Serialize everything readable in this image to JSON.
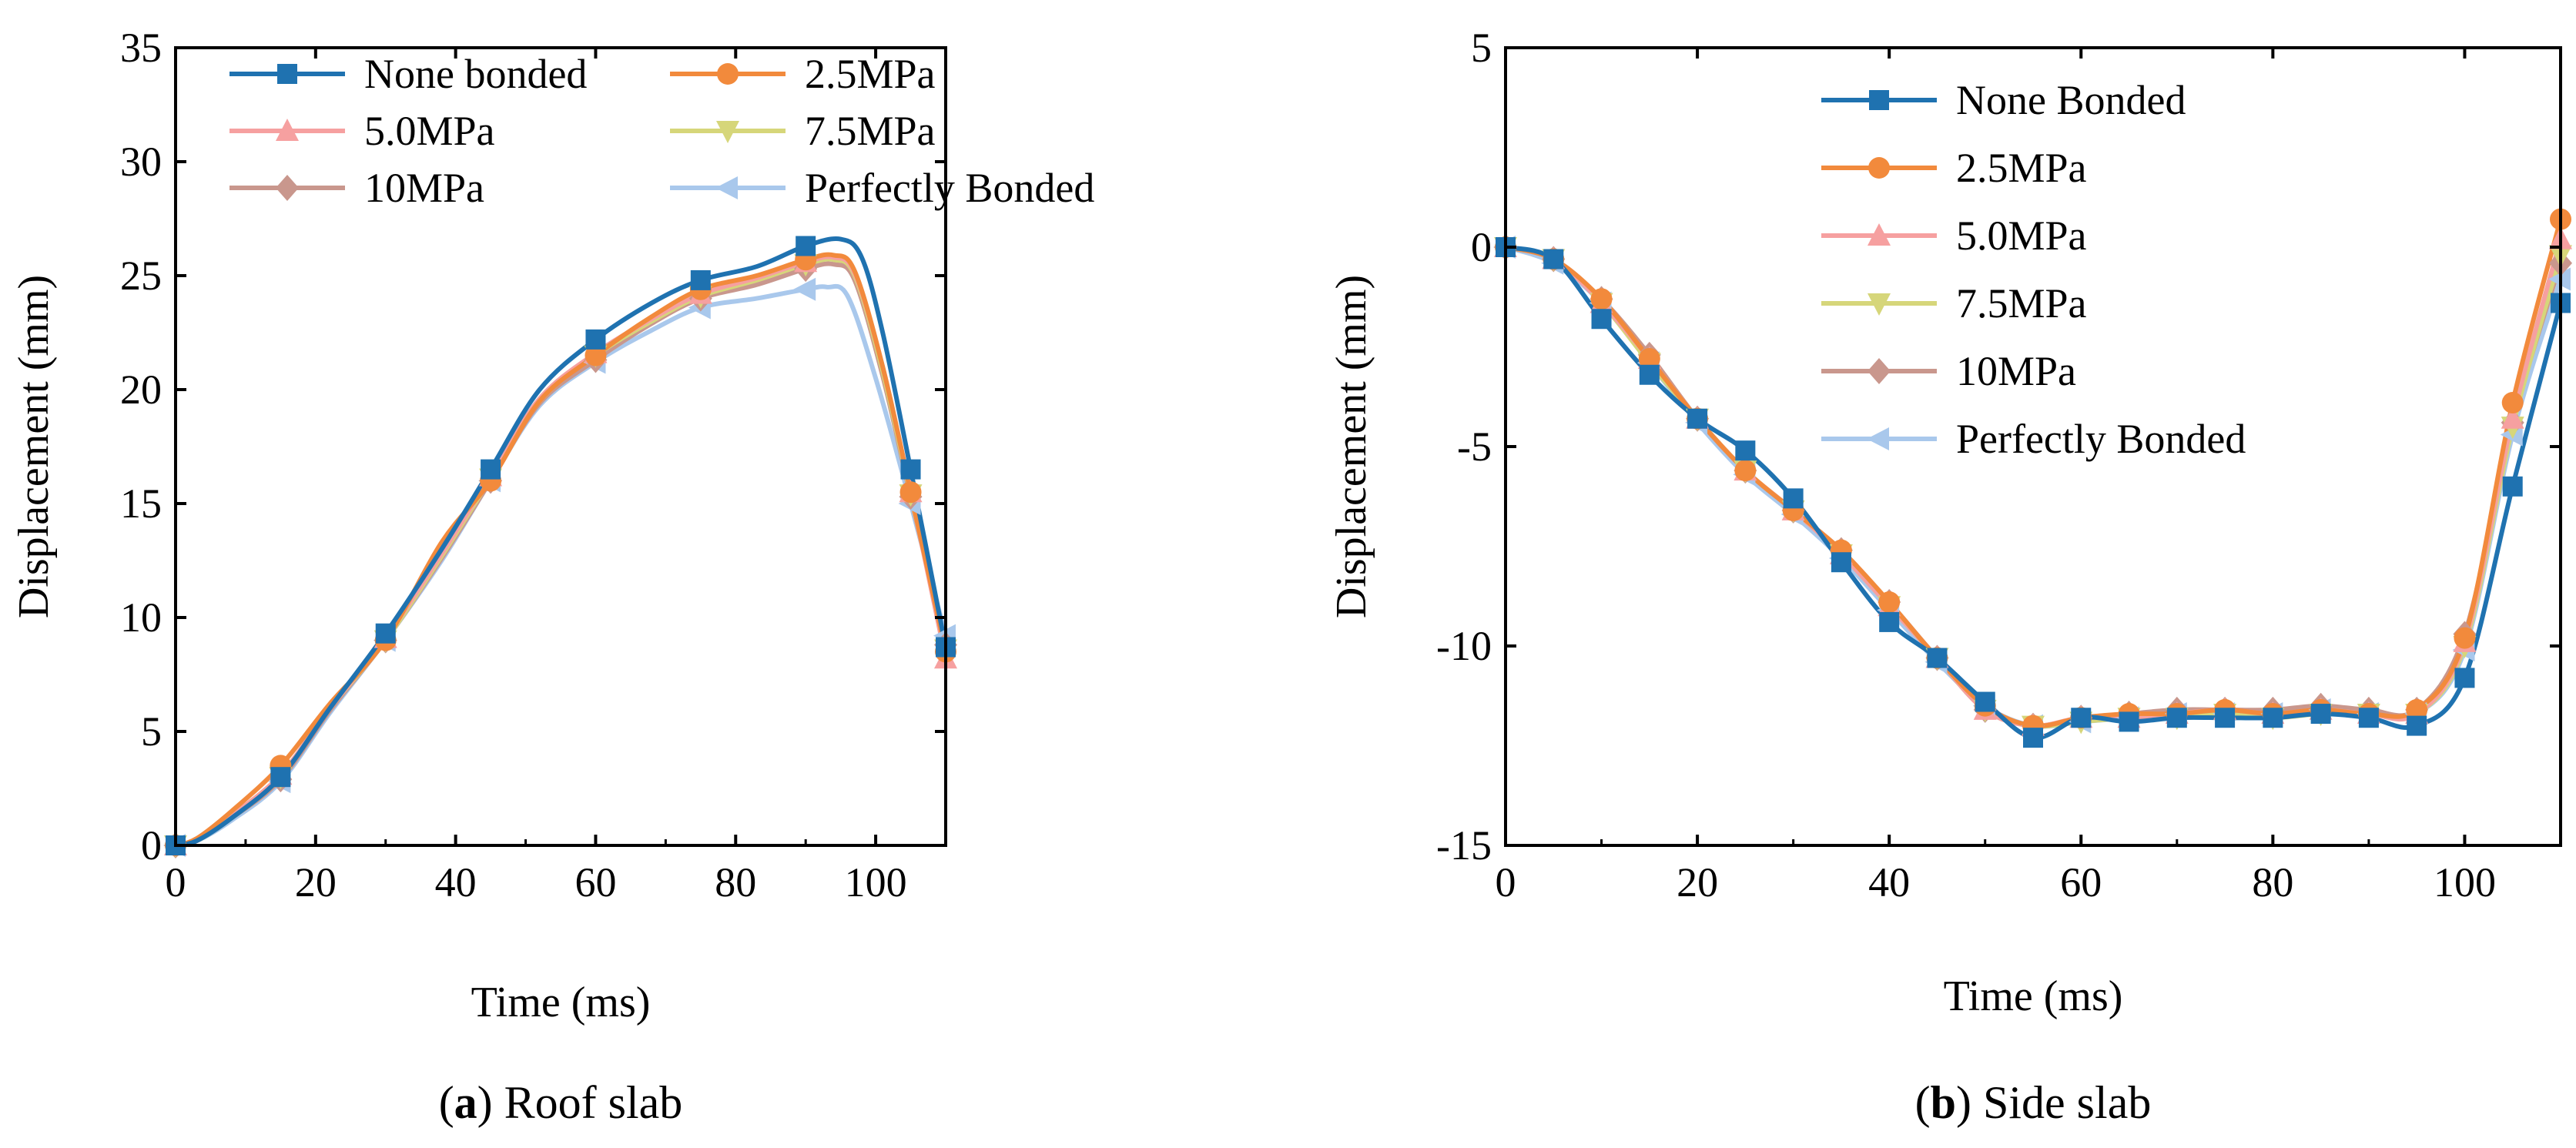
{
  "colors": {
    "None bonded": "#1f72b0",
    "2.5MPa": "#f28a3c",
    "5.0MPa": "#f6a0a0",
    "7.5MPa": "#d6d67a",
    "10MPa": "#c9978d",
    "Perfectly Bonded": "#a9c8ec"
  },
  "chart_data": [
    {
      "type": "line",
      "caption": {
        "label": "a",
        "open": "(",
        "close": ")",
        "text": " Roof slab"
      },
      "xlabel": "Time (ms)",
      "ylabel": "Displacement (mm)",
      "xlim": [
        0,
        110
      ],
      "ylim": [
        0,
        35
      ],
      "xticks": [
        0,
        20,
        40,
        60,
        80,
        100
      ],
      "yticks": [
        0,
        5,
        10,
        15,
        20,
        25,
        30,
        35
      ],
      "legend_position": "top",
      "series": [
        {
          "name": "None bonded",
          "marker": "square",
          "x": [
            0,
            3,
            8,
            15,
            22,
            30,
            38,
            45,
            52,
            60,
            68,
            75,
            83,
            90,
            95,
            98,
            101,
            105,
            110
          ],
          "y": [
            0,
            0.2,
            1.2,
            3.0,
            6.0,
            9.3,
            13.0,
            16.5,
            20.0,
            22.2,
            23.8,
            24.8,
            25.4,
            26.3,
            26.6,
            25.8,
            22.5,
            16.5,
            8.7
          ]
        },
        {
          "name": "2.5MPa",
          "marker": "circle",
          "x": [
            0,
            3,
            8,
            15,
            22,
            30,
            38,
            45,
            52,
            60,
            68,
            75,
            83,
            90,
            94,
            97,
            101,
            105,
            110
          ],
          "y": [
            0,
            0.3,
            1.5,
            3.5,
            6.2,
            9.0,
            13.3,
            16.0,
            19.5,
            21.5,
            23.2,
            24.4,
            25.0,
            25.7,
            25.9,
            25.2,
            21.0,
            15.5,
            8.5
          ]
        },
        {
          "name": "5.0MPa",
          "marker": "triangle-up",
          "x": [
            0,
            3,
            8,
            15,
            22,
            30,
            38,
            45,
            52,
            60,
            68,
            75,
            83,
            90,
            94,
            97,
            101,
            105,
            110
          ],
          "y": [
            0,
            0.2,
            1.3,
            3.1,
            6.0,
            9.1,
            12.8,
            16.2,
            19.6,
            21.6,
            23.1,
            24.2,
            24.9,
            25.6,
            25.8,
            25.1,
            21.0,
            15.5,
            8.2
          ]
        },
        {
          "name": "7.5MPa",
          "marker": "triangle-down",
          "x": [
            0,
            3,
            8,
            15,
            22,
            30,
            38,
            45,
            52,
            60,
            68,
            75,
            83,
            90,
            94,
            97,
            101,
            105,
            110
          ],
          "y": [
            0,
            0.2,
            1.2,
            3.0,
            6.0,
            9.0,
            12.7,
            16.1,
            19.5,
            21.5,
            23.0,
            24.1,
            24.8,
            25.5,
            25.7,
            25.0,
            20.8,
            15.4,
            8.6
          ]
        },
        {
          "name": "10MPa",
          "marker": "diamond",
          "x": [
            0,
            3,
            8,
            15,
            22,
            30,
            38,
            45,
            52,
            60,
            68,
            75,
            83,
            90,
            94,
            97,
            101,
            105,
            110
          ],
          "y": [
            0,
            0.2,
            1.2,
            2.9,
            5.9,
            9.0,
            12.6,
            16.0,
            19.4,
            21.3,
            22.9,
            24.0,
            24.6,
            25.3,
            25.5,
            24.8,
            20.6,
            15.3,
            8.8
          ]
        },
        {
          "name": "Perfectly Bonded",
          "marker": "triangle-left",
          "x": [
            0,
            3,
            8,
            15,
            22,
            30,
            38,
            45,
            52,
            60,
            68,
            75,
            83,
            90,
            93,
            96,
            100,
            105,
            110
          ],
          "y": [
            0,
            0.2,
            1.1,
            2.8,
            5.8,
            9.0,
            12.5,
            16.0,
            19.3,
            21.2,
            22.6,
            23.6,
            24.0,
            24.4,
            24.5,
            24.1,
            20.5,
            15.0,
            9.2
          ]
        }
      ],
      "marker_x": [
        0,
        15,
        30,
        45,
        60,
        75,
        90,
        105,
        110
      ]
    },
    {
      "type": "line",
      "caption": {
        "label": "b",
        "open": "(",
        "close": ")",
        "text": " Side slab"
      },
      "xlabel": "Time (ms)",
      "ylabel": "Displacement (mm)",
      "xlim": [
        0,
        110
      ],
      "ylim": [
        -15,
        5
      ],
      "xticks": [
        0,
        20,
        40,
        60,
        80,
        100
      ],
      "yticks": [
        -15,
        -10,
        -5,
        0,
        5
      ],
      "legend_position": "top-right",
      "series": [
        {
          "name": "None Bonded",
          "color_key": "None bonded",
          "marker": "square",
          "x": [
            0,
            5,
            10,
            15,
            20,
            25,
            30,
            35,
            40,
            45,
            50,
            55,
            60,
            65,
            70,
            75,
            80,
            85,
            90,
            95,
            100,
            105,
            110
          ],
          "y": [
            0,
            -0.3,
            -1.8,
            -3.2,
            -4.3,
            -5.1,
            -6.3,
            -7.9,
            -9.4,
            -10.3,
            -11.4,
            -12.3,
            -11.8,
            -11.9,
            -11.8,
            -11.8,
            -11.8,
            -11.7,
            -11.8,
            -12.0,
            -10.8,
            -6.0,
            -1.4
          ]
        },
        {
          "name": "2.5MPa",
          "color_key": "2.5MPa",
          "marker": "circle",
          "x": [
            0,
            5,
            10,
            15,
            20,
            25,
            30,
            35,
            40,
            45,
            50,
            55,
            60,
            65,
            70,
            75,
            80,
            85,
            90,
            95,
            100,
            105,
            110
          ],
          "y": [
            0,
            -0.3,
            -1.3,
            -2.8,
            -4.3,
            -5.6,
            -6.6,
            -7.6,
            -8.9,
            -10.3,
            -11.5,
            -12.0,
            -11.8,
            -11.7,
            -11.7,
            -11.6,
            -11.7,
            -11.6,
            -11.7,
            -11.6,
            -9.8,
            -3.9,
            0.7
          ]
        },
        {
          "name": "5.0MPa",
          "color_key": "5.0MPa",
          "marker": "triangle-up",
          "x": [
            0,
            5,
            10,
            15,
            20,
            25,
            30,
            35,
            40,
            45,
            50,
            55,
            60,
            65,
            70,
            75,
            80,
            85,
            90,
            95,
            100,
            105,
            110
          ],
          "y": [
            0,
            -0.3,
            -1.4,
            -2.8,
            -4.3,
            -5.6,
            -6.6,
            -7.7,
            -9.0,
            -10.3,
            -11.6,
            -12.0,
            -11.8,
            -11.8,
            -11.7,
            -11.6,
            -11.7,
            -11.6,
            -11.7,
            -11.7,
            -9.9,
            -4.3,
            0.2
          ]
        },
        {
          "name": "7.5MPa",
          "color_key": "7.5MPa",
          "marker": "triangle-down",
          "x": [
            0,
            5,
            10,
            15,
            20,
            25,
            30,
            35,
            40,
            45,
            50,
            55,
            60,
            65,
            70,
            75,
            80,
            85,
            90,
            95,
            100,
            105,
            110
          ],
          "y": [
            0,
            -0.3,
            -1.4,
            -2.9,
            -4.3,
            -5.6,
            -6.6,
            -7.7,
            -9.0,
            -10.3,
            -11.6,
            -12.0,
            -11.9,
            -11.8,
            -11.8,
            -11.7,
            -11.8,
            -11.7,
            -11.7,
            -11.7,
            -10.0,
            -4.5,
            -0.2
          ]
        },
        {
          "name": "10MPa",
          "color_key": "10MPa",
          "marker": "diamond",
          "x": [
            0,
            5,
            10,
            15,
            20,
            25,
            30,
            35,
            40,
            45,
            50,
            55,
            60,
            65,
            70,
            75,
            80,
            85,
            90,
            95,
            100,
            105,
            110
          ],
          "y": [
            0,
            -0.3,
            -1.3,
            -2.7,
            -4.3,
            -5.6,
            -6.6,
            -7.6,
            -8.9,
            -10.3,
            -11.6,
            -12.0,
            -11.8,
            -11.7,
            -11.6,
            -11.6,
            -11.6,
            -11.5,
            -11.6,
            -11.6,
            -9.7,
            -4.4,
            -0.4
          ]
        },
        {
          "name": "Perfectly Bonded",
          "color_key": "Perfectly Bonded",
          "marker": "triangle-left",
          "x": [
            0,
            5,
            10,
            15,
            20,
            25,
            30,
            35,
            40,
            45,
            50,
            55,
            60,
            65,
            70,
            75,
            80,
            85,
            90,
            95,
            100,
            105,
            110
          ],
          "y": [
            0,
            -0.4,
            -1.4,
            -2.9,
            -4.4,
            -5.7,
            -6.7,
            -7.8,
            -9.1,
            -10.4,
            -11.5,
            -12.0,
            -11.9,
            -11.8,
            -11.7,
            -11.7,
            -11.7,
            -11.6,
            -11.7,
            -11.7,
            -10.1,
            -4.7,
            -0.8
          ]
        }
      ],
      "marker_x": [
        0,
        5,
        10,
        15,
        20,
        25,
        30,
        35,
        40,
        45,
        50,
        55,
        60,
        65,
        70,
        75,
        80,
        85,
        90,
        95,
        100,
        105,
        110
      ]
    }
  ]
}
